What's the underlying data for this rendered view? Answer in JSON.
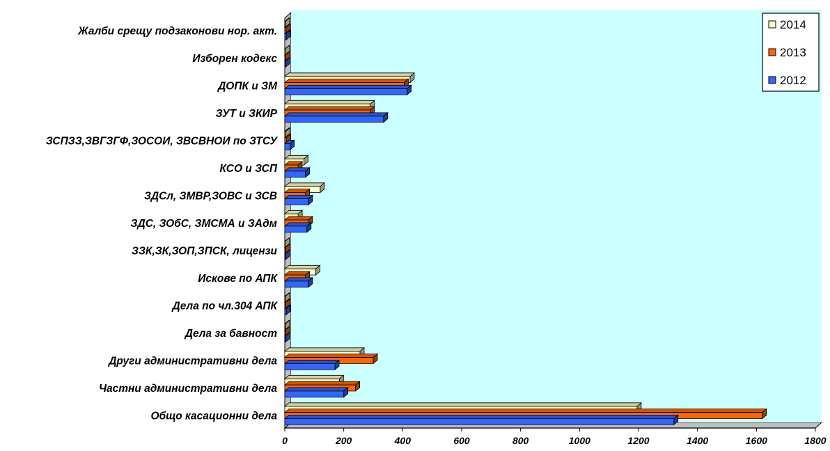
{
  "chart_data": {
    "type": "bar",
    "orientation": "horizontal",
    "categories": [
      "Жалби срещу подзаконови нор. акт.",
      "Изборен кодекс",
      "ДОПК и ЗМ",
      "ЗУТ и ЗКИР",
      "ЗСПЗЗ,ЗВГЗГФ,ЗОСОИ, ЗВСВНОИ по ЗТСУ",
      "КСО и ЗСП",
      "ЗДСл, ЗМВР,ЗОВС и ЗСВ",
      "ЗДС, ЗОбС,  ЗМСМА и  ЗАдм",
      "ЗЗК,ЗК,ЗОП,ЗПСК,      лицензи",
      "Искове по АПК",
      "Дела по чл.304 АПК",
      "Дела за бавност",
      "Други  административни дела",
      "Частни административни дела",
      "Общо  касационни дела"
    ],
    "series": [
      {
        "name": "2014",
        "color": "#ffffcc",
        "values": [
          2,
          1,
          425,
          290,
          3,
          65,
          120,
          45,
          1,
          105,
          2,
          2,
          255,
          185,
          1195
        ]
      },
      {
        "name": "2013",
        "color": "#ff6600",
        "values": [
          4,
          2,
          405,
          290,
          5,
          45,
          70,
          80,
          2,
          70,
          3,
          2,
          300,
          240,
          1620
        ]
      },
      {
        "name": "2012",
        "color": "#3366ff",
        "values": [
          5,
          2,
          415,
          335,
          18,
          70,
          80,
          75,
          2,
          80,
          5,
          2,
          170,
          200,
          1320
        ]
      }
    ],
    "x_ticks": [
      "0",
      "200",
      "400",
      "600",
      "800",
      "1000",
      "1200",
      "1400",
      "1600",
      "1800"
    ],
    "xlim": [
      0,
      1800
    ],
    "title": "",
    "xlabel": "",
    "ylabel": "",
    "grid": false,
    "legend_position": "top-right",
    "plot_background": "#ccffff"
  }
}
